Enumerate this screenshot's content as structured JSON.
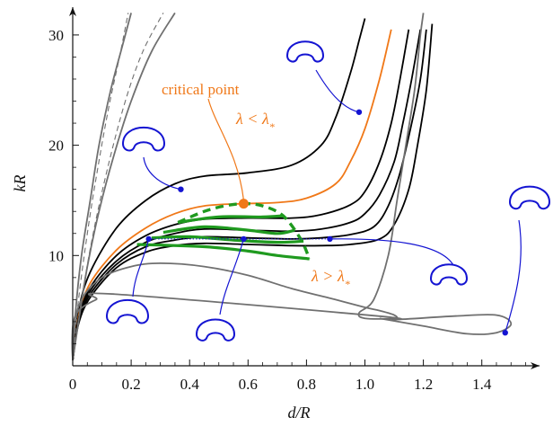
{
  "chart_data": {
    "type": "line",
    "xlabel": "d/R",
    "ylabel": "kR",
    "xlim": [
      0,
      1.6
    ],
    "ylim": [
      0,
      32
    ],
    "xticks": [
      "0",
      "0.2",
      "0.4",
      "0.6",
      "0.8",
      "1.0",
      "1.2",
      "1.4"
    ],
    "yticks": [
      "10",
      "20",
      "30"
    ],
    "colors": {
      "black_curves": "#000000",
      "critical_curve": "#f07818",
      "gray_curves": "#707070",
      "green_region": "#1f9a1f",
      "shape_markers": "#1414d2",
      "annotation": "#f07818"
    },
    "series": [
      {
        "role": "black",
        "points": [
          [
            0.0,
            0.5
          ],
          [
            0.02,
            5
          ],
          [
            0.06,
            8.5
          ],
          [
            0.15,
            12.5
          ],
          [
            0.25,
            15.0
          ],
          [
            0.35,
            16.5
          ],
          [
            0.45,
            17.2
          ],
          [
            0.6,
            17.5
          ],
          [
            0.75,
            18.2
          ],
          [
            0.85,
            20.0
          ],
          [
            0.9,
            22.5
          ],
          [
            0.95,
            26.5
          ],
          [
            0.98,
            29.5
          ],
          [
            1.0,
            31.5
          ]
        ]
      },
      {
        "role": "critical",
        "points": [
          [
            0.0,
            0.5
          ],
          [
            0.02,
            4.5
          ],
          [
            0.06,
            7.5
          ],
          [
            0.15,
            10.5
          ],
          [
            0.25,
            12.5
          ],
          [
            0.35,
            13.8
          ],
          [
            0.45,
            14.5
          ],
          [
            0.585,
            14.7
          ],
          [
            0.7,
            14.8
          ],
          [
            0.8,
            15.2
          ],
          [
            0.9,
            16.5
          ],
          [
            0.95,
            18.5
          ],
          [
            1.0,
            21.5
          ],
          [
            1.05,
            26.0
          ],
          [
            1.09,
            30.5
          ]
        ]
      },
      {
        "role": "black",
        "points": [
          [
            0.0,
            0.5
          ],
          [
            0.02,
            4.3
          ],
          [
            0.06,
            7.1
          ],
          [
            0.15,
            10.0
          ],
          [
            0.25,
            11.8
          ],
          [
            0.35,
            12.8
          ],
          [
            0.45,
            13.3
          ],
          [
            0.6,
            13.4
          ],
          [
            0.75,
            13.4
          ],
          [
            0.85,
            13.7
          ],
          [
            0.95,
            14.6
          ],
          [
            1.0,
            15.8
          ],
          [
            1.05,
            18.5
          ],
          [
            1.09,
            22.0
          ],
          [
            1.12,
            26.0
          ],
          [
            1.15,
            30.5
          ]
        ]
      },
      {
        "role": "black",
        "points": [
          [
            0.0,
            0.5
          ],
          [
            0.02,
            4.1
          ],
          [
            0.06,
            6.8
          ],
          [
            0.15,
            9.5
          ],
          [
            0.25,
            11.2
          ],
          [
            0.35,
            12.0
          ],
          [
            0.45,
            12.4
          ],
          [
            0.6,
            12.3
          ],
          [
            0.75,
            12.2
          ],
          [
            0.85,
            12.4
          ],
          [
            0.95,
            13.0
          ],
          [
            1.0,
            13.8
          ],
          [
            1.05,
            15.5
          ],
          [
            1.1,
            18.5
          ],
          [
            1.13,
            22.0
          ],
          [
            1.16,
            26.0
          ],
          [
            1.19,
            30.5
          ]
        ]
      },
      {
        "role": "black",
        "points": [
          [
            0.0,
            0.5
          ],
          [
            0.02,
            4.0
          ],
          [
            0.06,
            6.5
          ],
          [
            0.15,
            9.2
          ],
          [
            0.25,
            10.8
          ],
          [
            0.35,
            11.4
          ],
          [
            0.45,
            11.7
          ],
          [
            0.6,
            11.6
          ],
          [
            0.75,
            11.5
          ],
          [
            0.85,
            11.6
          ],
          [
            0.95,
            11.9
          ],
          [
            1.03,
            12.6
          ],
          [
            1.08,
            14.5
          ],
          [
            1.12,
            17.5
          ],
          [
            1.16,
            22.0
          ],
          [
            1.19,
            26.0
          ],
          [
            1.21,
            30.5
          ]
        ]
      },
      {
        "role": "black",
        "points": [
          [
            0.0,
            0.5
          ],
          [
            0.02,
            3.8
          ],
          [
            0.06,
            6.2
          ],
          [
            0.15,
            8.9
          ],
          [
            0.25,
            10.3
          ],
          [
            0.35,
            10.9
          ],
          [
            0.45,
            11.1
          ],
          [
            0.6,
            11.0
          ],
          [
            0.75,
            10.9
          ],
          [
            0.85,
            10.9
          ],
          [
            0.95,
            11.0
          ],
          [
            1.05,
            11.5
          ],
          [
            1.1,
            12.8
          ],
          [
            1.15,
            16.0
          ],
          [
            1.18,
            20.0
          ],
          [
            1.21,
            25.0
          ],
          [
            1.23,
            31.0
          ]
        ]
      },
      {
        "role": "gray",
        "points": [
          [
            0.0,
            0.5
          ],
          [
            0.01,
            5
          ],
          [
            0.03,
            10
          ],
          [
            0.06,
            15
          ],
          [
            0.09,
            20
          ],
          [
            0.13,
            25
          ],
          [
            0.17,
            29
          ],
          [
            0.2,
            32
          ]
        ]
      },
      {
        "role": "gray",
        "points": [
          [
            0.0,
            0.5
          ],
          [
            0.02,
            4
          ],
          [
            0.05,
            9
          ],
          [
            0.09,
            14
          ],
          [
            0.14,
            19
          ],
          [
            0.2,
            24
          ],
          [
            0.27,
            28.5
          ],
          [
            0.35,
            32
          ]
        ]
      },
      {
        "role": "gray-dashed",
        "points": [
          [
            0.0,
            0.5
          ],
          [
            0.02,
            6
          ],
          [
            0.05,
            12
          ],
          [
            0.08,
            17
          ],
          [
            0.12,
            23
          ],
          [
            0.16,
            28
          ],
          [
            0.19,
            32
          ]
        ]
      },
      {
        "role": "gray-dashed",
        "points": [
          [
            0.0,
            0.5
          ],
          [
            0.03,
            6
          ],
          [
            0.07,
            12
          ],
          [
            0.12,
            18
          ],
          [
            0.18,
            24
          ],
          [
            0.24,
            28.5
          ],
          [
            0.31,
            32
          ]
        ]
      },
      {
        "role": "gray",
        "points": [
          [
            0.0,
            0.5
          ],
          [
            0.0,
            3
          ],
          [
            0.03,
            6
          ],
          [
            0.1,
            8.0
          ],
          [
            0.2,
            9.0
          ],
          [
            0.3,
            9.3
          ],
          [
            0.45,
            9.0
          ],
          [
            0.6,
            8.2
          ],
          [
            0.75,
            7.0
          ],
          [
            0.9,
            6.0
          ],
          [
            1.0,
            5.3
          ],
          [
            1.05,
            5.0
          ],
          [
            1.1,
            4.6
          ],
          [
            1.1,
            4.3
          ],
          [
            1.0,
            4.3
          ],
          [
            0.98,
            4.8
          ],
          [
            1.03,
            6
          ],
          [
            1.08,
            10
          ],
          [
            1.11,
            15
          ],
          [
            1.14,
            20
          ],
          [
            1.17,
            25
          ],
          [
            1.19,
            30
          ],
          [
            1.2,
            32
          ]
        ]
      },
      {
        "role": "gray",
        "points": [
          [
            0.0,
            0.5
          ],
          [
            0.0,
            3.5
          ],
          [
            0.02,
            5
          ],
          [
            0.08,
            6
          ],
          [
            0.14,
            6.5
          ],
          [
            1.05,
            4.5
          ],
          [
            1.1,
            4.2
          ],
          [
            1.3,
            4.5
          ],
          [
            1.45,
            4.6
          ],
          [
            1.5,
            3.8
          ],
          [
            1.45,
            3.0
          ],
          [
            1.35,
            2.9
          ],
          [
            1.2,
            3.6
          ],
          [
            1.05,
            4.3
          ]
        ]
      }
    ],
    "green_region": {
      "arc": [
        [
          0.36,
          13.0
        ],
        [
          0.45,
          14.0
        ],
        [
          0.52,
          14.5
        ],
        [
          0.585,
          14.7
        ],
        [
          0.65,
          14.5
        ],
        [
          0.72,
          13.6
        ],
        [
          0.78,
          11.5
        ],
        [
          0.81,
          9.7
        ]
      ],
      "bands": [
        [
          [
            0.36,
            13.0
          ],
          [
            0.5,
            13.5
          ],
          [
            0.65,
            13.5
          ],
          [
            0.72,
            13.6
          ]
        ],
        [
          [
            0.31,
            12.1
          ],
          [
            0.45,
            12.6
          ],
          [
            0.6,
            12.3
          ],
          [
            0.7,
            12.0
          ],
          [
            0.76,
            12.3
          ]
        ],
        [
          [
            0.27,
            11.6
          ],
          [
            0.4,
            11.7
          ],
          [
            0.55,
            11.4
          ],
          [
            0.7,
            11.2
          ],
          [
            0.79,
            11.3
          ]
        ],
        [
          [
            0.22,
            11.0
          ],
          [
            0.45,
            10.8
          ],
          [
            0.6,
            10.4
          ],
          [
            0.7,
            10.0
          ],
          [
            0.81,
            9.7
          ]
        ]
      ],
      "dotted_line": [
        [
          0.26,
          11.5
        ],
        [
          0.88,
          11.5
        ]
      ]
    },
    "critical_point": {
      "label": "critical point",
      "x": 0.585,
      "y": 14.7
    },
    "annotations": [
      {
        "text": "λ < λ",
        "sub": "*",
        "color": "#f07818"
      },
      {
        "text": "λ > λ",
        "sub": "*",
        "color": "#f07818"
      }
    ],
    "markers": [
      {
        "x": 0.37,
        "y": 16.0
      },
      {
        "x": 0.26,
        "y": 11.5
      },
      {
        "x": 0.585,
        "y": 11.5
      },
      {
        "x": 0.88,
        "y": 11.5
      },
      {
        "x": 0.98,
        "y": 23.0
      },
      {
        "x": 1.48,
        "y": 3.0
      }
    ]
  }
}
